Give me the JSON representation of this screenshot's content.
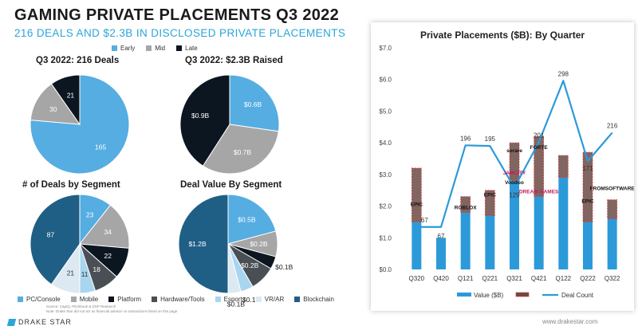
{
  "header": {
    "title": "GAMING PRIVATE PLACEMENTS Q3 2022",
    "subtitle": "216 DEALS AND $2.3B IN DISCLOSED PRIVATE PLACEMENTS"
  },
  "colors": {
    "early": "#55ade2",
    "mid": "#a6a6a6",
    "late": "#0c1620",
    "pc_console": "#55ade2",
    "mobile": "#a6a6a6",
    "platform": "#0c1620",
    "hardware_tools": "#4a4f55",
    "esports": "#a9d5ef",
    "vr_ar": "#dce9f2",
    "blockchain": "#1f5f85",
    "bar": "#2c9ad9",
    "line": "#2c9ad9",
    "accent": "#2aa6d9"
  },
  "stage_legend": {
    "early": "Early",
    "mid": "Mid",
    "late": "Late"
  },
  "segment_legend": [
    "PC/Console",
    "Mobile",
    "Platform",
    "Hardware/Tools",
    "Esports",
    "VR/AR",
    "Blockchain"
  ],
  "source_note": "Source: CapIQ, Pitchbook & DSP Research",
  "source_note2": "Note: Drake Star did not act as financial advisor on transactions listed on this page",
  "brand": "DRAKE STAR",
  "website": "www.drakestar.com",
  "logos": [
    "EPIC",
    "ROBLOX",
    "EPIC",
    "JAMCITY",
    "Voodoo",
    "sorare",
    "FORTE",
    "DREAM GAMES",
    "FROMSOFTWARE",
    "EPIC"
  ],
  "chart_data": [
    {
      "type": "pie",
      "title": "Q3 2022: 216 Deals",
      "slices": [
        {
          "name": "Early",
          "value": 165,
          "label": "165"
        },
        {
          "name": "Mid",
          "value": 30,
          "label": "30"
        },
        {
          "name": "Late",
          "value": 21,
          "label": "21"
        }
      ]
    },
    {
      "type": "pie",
      "title": "Q3 2022: $2.3B Raised",
      "slices": [
        {
          "name": "Early",
          "value": 0.6,
          "label": "$0.6B"
        },
        {
          "name": "Mid",
          "value": 0.7,
          "label": "$0.7B"
        },
        {
          "name": "Late",
          "value": 0.9,
          "label": "$0.9B"
        }
      ]
    },
    {
      "type": "pie",
      "title": "# of Deals by Segment",
      "slices": [
        {
          "name": "PC/Console",
          "value": 23,
          "label": "23"
        },
        {
          "name": "Mobile",
          "value": 34,
          "label": "34"
        },
        {
          "name": "Platform",
          "value": 22,
          "label": "22"
        },
        {
          "name": "Hardware/Tools",
          "value": 18,
          "label": "18"
        },
        {
          "name": "Esports",
          "value": 11,
          "label": "11"
        },
        {
          "name": "VR/AR",
          "value": 21,
          "label": "21"
        },
        {
          "name": "Blockchain",
          "value": 87,
          "label": "87"
        }
      ]
    },
    {
      "type": "pie",
      "title": "Deal Value By Segment",
      "slices": [
        {
          "name": "PC/Console",
          "value": 0.5,
          "label": "$0.5B"
        },
        {
          "name": "Mobile",
          "value": 0.2,
          "label": "$0.2B"
        },
        {
          "name": "Platform",
          "value": 0.1,
          "label": "$0.1B"
        },
        {
          "name": "Hardware/Tools",
          "value": 0.2,
          "label": "$0.2B"
        },
        {
          "name": "Esports",
          "value": 0.1,
          "label": "$0.1B"
        },
        {
          "name": "VR/AR",
          "value": 0.1,
          "label": "$0.1B"
        },
        {
          "name": "Blockchain",
          "value": 1.2,
          "label": "$1.2B"
        }
      ]
    },
    {
      "type": "bar",
      "title": "Private Placements ($B): By Quarter",
      "categories": [
        "Q320",
        "Q420",
        "Q121",
        "Q221",
        "Q321",
        "Q421",
        "Q122",
        "Q222",
        "Q322"
      ],
      "ylim": [
        0,
        7
      ],
      "yticks": [
        "$0.0",
        "$1.0",
        "$2.0",
        "$3.0",
        "$4.0",
        "$5.0",
        "$6.0",
        "$7.0"
      ],
      "series": [
        {
          "name": "Value ($B)",
          "values": [
            1.5,
            1.0,
            1.8,
            1.7,
            2.8,
            2.3,
            2.9,
            1.5,
            1.6
          ]
        },
        {
          "name": "",
          "values": [
            1.7,
            0.0,
            0.5,
            0.8,
            1.2,
            1.9,
            0.7,
            2.2,
            0.6
          ]
        },
        {
          "name": "Deal Count",
          "type": "line",
          "values": [
            67,
            67,
            196,
            195,
            129,
            201,
            298,
            171,
            216
          ]
        }
      ],
      "legend": [
        "Value ($B)",
        "",
        "Deal Count"
      ]
    }
  ]
}
